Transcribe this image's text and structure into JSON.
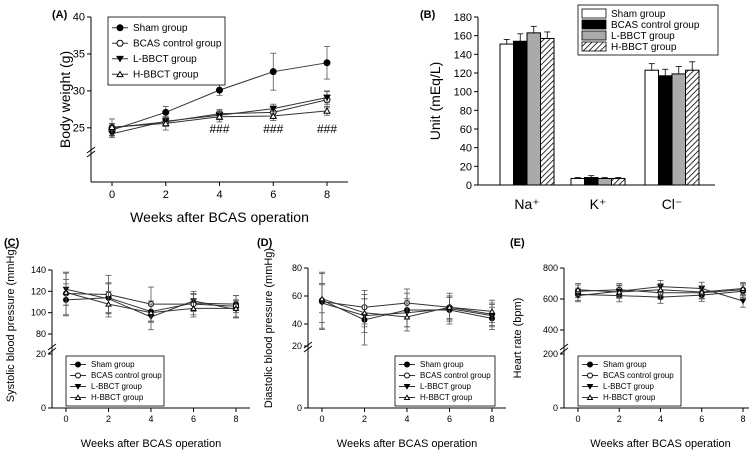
{
  "chart_data": [
    {
      "panel": "(A)",
      "type": "line",
      "xlabel": "Weeks after BCAS operation",
      "ylabel": "Body weight (g)",
      "x": [
        0,
        2,
        4,
        6,
        8
      ],
      "xticks": [
        "0",
        "2",
        "4",
        "6",
        "8"
      ],
      "ylim": [
        20,
        40
      ],
      "yticks": [
        "25",
        "30",
        "35",
        "40"
      ],
      "y_break": true,
      "series": [
        {
          "name": "Sham group",
          "marker": "circle-filled",
          "values": [
            24.7,
            27.1,
            30.1,
            32.6,
            33.8
          ],
          "errors": [
            0.8,
            0.8,
            0.7,
            2.5,
            2.2
          ]
        },
        {
          "name": "BCAS control group",
          "marker": "circle-open",
          "values": [
            25.0,
            25.8,
            26.9,
            27.1,
            28.8
          ],
          "errors": [
            0.6,
            0.6,
            0.6,
            0.8,
            1.1
          ]
        },
        {
          "name": "L-BBCT group",
          "marker": "triangle-down-filled",
          "values": [
            24.2,
            25.9,
            26.7,
            27.6,
            29.1
          ],
          "errors": [
            0.5,
            0.6,
            0.6,
            0.6,
            0.9
          ]
        },
        {
          "name": "H-BBCT group",
          "marker": "triangle-up-open",
          "values": [
            25.1,
            25.6,
            26.5,
            26.6,
            27.3
          ],
          "errors": [
            1.1,
            0.9,
            0.7,
            0.6,
            0.6
          ]
        }
      ],
      "annotations": [
        {
          "x": 4,
          "text": "###"
        },
        {
          "x": 6,
          "text": "###"
        },
        {
          "x": 8,
          "text": "###"
        }
      ],
      "legend": "top-left"
    },
    {
      "panel": "(B)",
      "type": "bar",
      "ylabel": "Unit (mEq/L)",
      "categories": [
        "Na⁺",
        "K⁺",
        "Cl⁻"
      ],
      "ylim": [
        0,
        180
      ],
      "yticks": [
        "0",
        "20",
        "40",
        "60",
        "80",
        "100",
        "120",
        "140",
        "160",
        "180"
      ],
      "series": [
        {
          "name": "Sham group",
          "fill": "white",
          "values": [
            151,
            7,
            123
          ],
          "errors": [
            5,
            1,
            7
          ]
        },
        {
          "name": "BCAS control group",
          "fill": "black",
          "values": [
            154,
            8,
            117
          ],
          "errors": [
            8,
            2,
            7
          ]
        },
        {
          "name": "L-BBCT group",
          "fill": "gray",
          "values": [
            163,
            7,
            119
          ],
          "errors": [
            7,
            1,
            8
          ]
        },
        {
          "name": "H-BBCT group",
          "fill": "hatched",
          "values": [
            157,
            7,
            123
          ],
          "errors": [
            7,
            1,
            9
          ]
        }
      ],
      "legend": "top-right"
    },
    {
      "panel": "(C)",
      "type": "line",
      "xlabel": "Weeks after BCAS operation",
      "ylabel": "Systolic blood pressure (mmHg)",
      "x": [
        0,
        2,
        4,
        6,
        8
      ],
      "xticks": [
        "0",
        "2",
        "4",
        "6",
        "8"
      ],
      "ylim": [
        0,
        140
      ],
      "yticks": [
        "0",
        "20",
        "80",
        "100",
        "120",
        "140"
      ],
      "y_break": true,
      "series": [
        {
          "name": "Sham group",
          "marker": "circle-filled",
          "values": [
            112,
            114,
            101,
            109,
            108
          ],
          "errors": [
            15,
            14,
            10,
            8,
            8
          ]
        },
        {
          "name": "BCAS control group",
          "marker": "circle-open",
          "values": [
            118,
            117,
            108,
            108,
            106
          ],
          "errors": [
            20,
            18,
            16,
            10,
            10
          ]
        },
        {
          "name": "L-BBCT group",
          "marker": "triangle-down-filled",
          "values": [
            122,
            113,
            96,
            111,
            103
          ],
          "errors": [
            15,
            14,
            12,
            9,
            8
          ]
        },
        {
          "name": "H-BBCT group",
          "marker": "triangle-up-open",
          "values": [
            119,
            108,
            100,
            104,
            104
          ],
          "errors": [
            12,
            12,
            8,
            8,
            8
          ]
        }
      ],
      "legend": "bottom-left"
    },
    {
      "panel": "(D)",
      "type": "line",
      "xlabel": "Weeks after BCAS operation",
      "ylabel": "Diastolic blood pressure (mmHg)",
      "x": [
        0,
        2,
        4,
        6,
        8
      ],
      "xticks": [
        "0",
        "2",
        "4",
        "6",
        "8"
      ],
      "ylim": [
        0,
        80
      ],
      "yticks": [
        "0",
        "20",
        "40",
        "60",
        "80"
      ],
      "y_break": true,
      "series": [
        {
          "name": "Sham group",
          "marker": "circle-filled",
          "values": [
            57,
            43,
            50,
            50,
            44
          ],
          "errors": [
            20,
            18,
            12,
            10,
            8
          ]
        },
        {
          "name": "BCAS control group",
          "marker": "circle-open",
          "values": [
            56,
            52,
            55,
            52,
            47
          ],
          "errors": [
            20,
            12,
            10,
            10,
            8
          ]
        },
        {
          "name": "L-BBCT group",
          "marker": "triangle-down-filled",
          "values": [
            55,
            46,
            48,
            51,
            46
          ],
          "errors": [
            14,
            12,
            10,
            8,
            8
          ]
        },
        {
          "name": "H-BBCT group",
          "marker": "triangle-up-open",
          "values": [
            58,
            48,
            45,
            52,
            49
          ],
          "errors": [
            10,
            10,
            10,
            8,
            8
          ]
        }
      ],
      "legend": "bottom-right"
    },
    {
      "panel": "(E)",
      "type": "line",
      "xlabel": "Weeks after BCAS operation",
      "ylabel": "Heart rate (bpm)",
      "x": [
        0,
        2,
        4,
        6,
        8
      ],
      "xticks": [
        "0",
        "2",
        "4",
        "6",
        "8"
      ],
      "ylim": [
        0,
        800
      ],
      "yticks": [
        "0",
        "200",
        "400",
        "600",
        "800"
      ],
      "y_break": true,
      "series": [
        {
          "name": "Sham group",
          "marker": "circle-filled",
          "values": [
            630,
            622,
            612,
            625,
            650
          ],
          "errors": [
            40,
            40,
            40,
            40,
            40
          ]
        },
        {
          "name": "BCAS control group",
          "marker": "circle-open",
          "values": [
            650,
            660,
            640,
            640,
            660
          ],
          "errors": [
            40,
            40,
            40,
            40,
            40
          ]
        },
        {
          "name": "L-BBCT group",
          "marker": "triangle-down-filled",
          "values": [
            622,
            650,
            680,
            668,
            587
          ],
          "errors": [
            40,
            40,
            40,
            40,
            40
          ]
        },
        {
          "name": "H-BBCT group",
          "marker": "triangle-up-open",
          "values": [
            660,
            645,
            660,
            645,
            668
          ],
          "errors": [
            40,
            40,
            40,
            40,
            40
          ]
        }
      ],
      "legend": "bottom-left"
    }
  ]
}
